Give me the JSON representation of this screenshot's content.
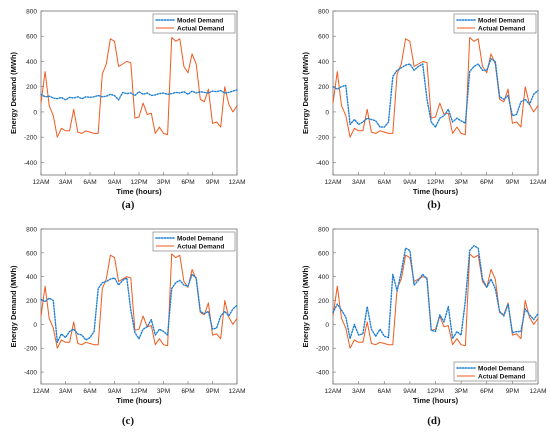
{
  "chart_data": [
    {
      "type": "line",
      "panel_label": "(a)",
      "xlabel": "Time (hours)",
      "ylabel": "Energy Demand (MWh)",
      "xlim": [
        0,
        24
      ],
      "ylim": [
        -500,
        800
      ],
      "x_ticks": [
        {
          "label": "12AM",
          "value": 0
        },
        {
          "label": "3AM",
          "value": 3
        },
        {
          "label": "6AM",
          "value": 6
        },
        {
          "label": "9AM",
          "value": 9
        },
        {
          "label": "12PM",
          "value": 12
        },
        {
          "label": "3PM",
          "value": 15
        },
        {
          "label": "6PM",
          "value": 18
        },
        {
          "label": "9PM",
          "value": 21
        },
        {
          "label": "12AM",
          "value": 24
        }
      ],
      "y_ticks": [
        -400,
        -200,
        0,
        200,
        400,
        600,
        800
      ],
      "legend_position": "top-right",
      "grid": false,
      "x": [
        0.0,
        0.5,
        1.0,
        1.5,
        2.0,
        2.5,
        3.0,
        3.5,
        4.0,
        4.5,
        5.0,
        5.5,
        6.0,
        6.5,
        7.0,
        7.5,
        8.0,
        8.5,
        9.0,
        9.5,
        10.0,
        10.5,
        11.0,
        11.5,
        12.0,
        12.5,
        13.0,
        13.5,
        14.0,
        14.5,
        15.0,
        15.5,
        16.0,
        16.5,
        17.0,
        17.5,
        18.0,
        18.5,
        19.0,
        19.5,
        20.0,
        20.5,
        21.0,
        21.5,
        22.0,
        22.5,
        23.0,
        23.5,
        24.0
      ],
      "series": [
        {
          "name": "Model Demand",
          "color": "#1f7fd0",
          "dash": "dotted",
          "values": [
            140,
            120,
            125,
            110,
            105,
            115,
            95,
            115,
            110,
            120,
            105,
            120,
            115,
            120,
            130,
            120,
            125,
            140,
            130,
            95,
            155,
            145,
            150,
            130,
            160,
            140,
            150,
            130,
            135,
            145,
            150,
            140,
            145,
            155,
            150,
            160,
            140,
            165,
            150,
            160,
            155,
            150,
            165,
            160,
            170,
            150,
            155,
            165,
            175
          ]
        },
        {
          "name": "Actual Demand",
          "color": "#f05a1e",
          "dash": "solid",
          "values": [
            70,
            320,
            50,
            -30,
            -200,
            -130,
            -150,
            -150,
            20,
            -160,
            -170,
            -150,
            -160,
            -170,
            -170,
            300,
            380,
            580,
            560,
            360,
            380,
            400,
            390,
            -50,
            -40,
            70,
            -20,
            -10,
            -170,
            -120,
            -170,
            -180,
            590,
            560,
            580,
            360,
            310,
            460,
            380,
            100,
            80,
            180,
            -90,
            -80,
            -120,
            200,
            60,
            0,
            50
          ]
        }
      ]
    },
    {
      "type": "line",
      "panel_label": "(b)",
      "xlabel": "Time (hours)",
      "ylabel": "Energy Demand (MWh)",
      "xlim": [
        0,
        24
      ],
      "ylim": [
        -500,
        800
      ],
      "x_ticks": [
        {
          "label": "12AM",
          "value": 0
        },
        {
          "label": "3AM",
          "value": 3
        },
        {
          "label": "6AM",
          "value": 6
        },
        {
          "label": "9AM",
          "value": 9
        },
        {
          "label": "12PM",
          "value": 12
        },
        {
          "label": "3PM",
          "value": 15
        },
        {
          "label": "6PM",
          "value": 18
        },
        {
          "label": "9PM",
          "value": 21
        },
        {
          "label": "12AM",
          "value": 24
        }
      ],
      "y_ticks": [
        -400,
        -200,
        0,
        200,
        400,
        600,
        800
      ],
      "legend_position": "top-right",
      "grid": false,
      "x": [
        0.0,
        0.5,
        1.0,
        1.5,
        2.0,
        2.5,
        3.0,
        3.5,
        4.0,
        4.5,
        5.0,
        5.5,
        6.0,
        6.5,
        7.0,
        7.5,
        8.0,
        8.5,
        9.0,
        9.5,
        10.0,
        10.5,
        11.0,
        11.5,
        12.0,
        12.5,
        13.0,
        13.5,
        14.0,
        14.5,
        15.0,
        15.5,
        16.0,
        16.5,
        17.0,
        17.5,
        18.0,
        18.5,
        19.0,
        19.5,
        20.0,
        20.5,
        21.0,
        21.5,
        22.0,
        22.5,
        23.0,
        23.5,
        24.0
      ],
      "series": [
        {
          "name": "Model Demand",
          "color": "#1f7fd0",
          "dash": "dotted",
          "values": [
            200,
            180,
            200,
            210,
            -100,
            -60,
            -100,
            -80,
            -50,
            -60,
            -70,
            -120,
            -120,
            -80,
            280,
            330,
            350,
            370,
            380,
            330,
            360,
            380,
            100,
            -80,
            -120,
            -50,
            -30,
            20,
            -80,
            -50,
            -70,
            -90,
            320,
            360,
            380,
            330,
            330,
            420,
            400,
            120,
            100,
            130,
            -30,
            -20,
            80,
            100,
            60,
            140,
            170
          ]
        },
        {
          "name": "Actual Demand",
          "color": "#f05a1e",
          "dash": "solid",
          "values": [
            70,
            320,
            50,
            -30,
            -200,
            -130,
            -150,
            -150,
            20,
            -160,
            -170,
            -150,
            -160,
            -170,
            -170,
            300,
            380,
            580,
            560,
            360,
            380,
            400,
            390,
            -50,
            -40,
            70,
            -20,
            -10,
            -170,
            -120,
            -170,
            -180,
            590,
            560,
            580,
            360,
            310,
            460,
            380,
            100,
            80,
            180,
            -90,
            -80,
            -120,
            200,
            60,
            0,
            50
          ]
        }
      ]
    },
    {
      "type": "line",
      "panel_label": "(c)",
      "xlabel": "Time (hours)",
      "ylabel": "Energy Demand (MWh)",
      "xlim": [
        0,
        24
      ],
      "ylim": [
        -500,
        800
      ],
      "x_ticks": [
        {
          "label": "12AM",
          "value": 0
        },
        {
          "label": "3AM",
          "value": 3
        },
        {
          "label": "6AM",
          "value": 6
        },
        {
          "label": "9AM",
          "value": 9
        },
        {
          "label": "12PM",
          "value": 12
        },
        {
          "label": "3PM",
          "value": 15
        },
        {
          "label": "6PM",
          "value": 18
        },
        {
          "label": "9PM",
          "value": 21
        },
        {
          "label": "12AM",
          "value": 24
        }
      ],
      "y_ticks": [
        -400,
        -200,
        0,
        200,
        400,
        600,
        800
      ],
      "legend_position": "top-right",
      "grid": false,
      "x": [
        0.0,
        0.5,
        1.0,
        1.5,
        2.0,
        2.5,
        3.0,
        3.5,
        4.0,
        4.5,
        5.0,
        5.5,
        6.0,
        6.5,
        7.0,
        7.5,
        8.0,
        8.5,
        9.0,
        9.5,
        10.0,
        10.5,
        11.0,
        11.5,
        12.0,
        12.5,
        13.0,
        13.5,
        14.0,
        14.5,
        15.0,
        15.5,
        16.0,
        16.5,
        17.0,
        17.5,
        18.0,
        18.5,
        19.0,
        19.5,
        20.0,
        20.5,
        21.0,
        21.5,
        22.0,
        22.5,
        23.0,
        23.5,
        24.0
      ],
      "series": [
        {
          "name": "Model Demand",
          "color": "#1f7fd0",
          "dash": "dotted",
          "values": [
            210,
            190,
            220,
            200,
            -150,
            -80,
            -110,
            -60,
            -40,
            -80,
            -90,
            -130,
            -110,
            -60,
            300,
            350,
            360,
            380,
            390,
            330,
            370,
            390,
            120,
            -70,
            -120,
            -40,
            -20,
            40,
            -90,
            -40,
            -60,
            -90,
            300,
            350,
            370,
            330,
            320,
            420,
            390,
            110,
            90,
            110,
            -40,
            -30,
            70,
            110,
            70,
            130,
            160
          ]
        },
        {
          "name": "Actual Demand",
          "color": "#f05a1e",
          "dash": "solid",
          "values": [
            70,
            320,
            50,
            -30,
            -200,
            -130,
            -150,
            -150,
            20,
            -160,
            -170,
            -150,
            -160,
            -170,
            -170,
            300,
            380,
            580,
            560,
            360,
            380,
            400,
            390,
            -50,
            -40,
            70,
            -20,
            -10,
            -170,
            -120,
            -170,
            -180,
            590,
            560,
            580,
            360,
            310,
            460,
            380,
            100,
            80,
            180,
            -90,
            -80,
            -120,
            200,
            60,
            0,
            50
          ]
        }
      ]
    },
    {
      "type": "line",
      "panel_label": "(d)",
      "xlabel": "Time (hours)",
      "ylabel": "Energy Demand (MWh)",
      "xlim": [
        0,
        24
      ],
      "ylim": [
        -500,
        800
      ],
      "x_ticks": [
        {
          "label": "12AM",
          "value": 0
        },
        {
          "label": "3AM",
          "value": 3
        },
        {
          "label": "6AM",
          "value": 6
        },
        {
          "label": "9AM",
          "value": 9
        },
        {
          "label": "12PM",
          "value": 12
        },
        {
          "label": "3PM",
          "value": 15
        },
        {
          "label": "6PM",
          "value": 18
        },
        {
          "label": "9PM",
          "value": 21
        },
        {
          "label": "12AM",
          "value": 24
        }
      ],
      "y_ticks": [
        -400,
        -200,
        0,
        200,
        400,
        600,
        800
      ],
      "legend_position": "bottom-right",
      "grid": false,
      "x": [
        0.0,
        0.5,
        1.0,
        1.5,
        2.0,
        2.5,
        3.0,
        3.5,
        4.0,
        4.5,
        5.0,
        5.5,
        6.0,
        6.5,
        7.0,
        7.5,
        8.0,
        8.5,
        9.0,
        9.5,
        10.0,
        10.5,
        11.0,
        11.5,
        12.0,
        12.5,
        13.0,
        13.5,
        14.0,
        14.5,
        15.0,
        15.5,
        16.0,
        16.5,
        17.0,
        17.5,
        18.0,
        18.5,
        19.0,
        19.5,
        20.0,
        20.5,
        21.0,
        21.5,
        22.0,
        22.5,
        23.0,
        23.5,
        24.0
      ],
      "series": [
        {
          "name": "Model Demand",
          "color": "#1f7fd0",
          "dash": "dotted",
          "values": [
            100,
            170,
            120,
            60,
            -120,
            0,
            -90,
            -80,
            150,
            -40,
            -100,
            -40,
            -100,
            -110,
            420,
            280,
            440,
            640,
            620,
            330,
            370,
            420,
            380,
            -50,
            -60,
            80,
            20,
            150,
            -120,
            -60,
            -90,
            200,
            620,
            660,
            640,
            380,
            310,
            380,
            300,
            110,
            70,
            170,
            -70,
            -60,
            -60,
            130,
            80,
            40,
            90
          ]
        },
        {
          "name": "Actual Demand",
          "color": "#f05a1e",
          "dash": "solid",
          "values": [
            70,
            320,
            50,
            -30,
            -200,
            -130,
            -150,
            -150,
            20,
            -160,
            -170,
            -150,
            -160,
            -170,
            -170,
            300,
            380,
            580,
            560,
            360,
            380,
            400,
            390,
            -50,
            -40,
            70,
            -20,
            -10,
            -170,
            -120,
            -170,
            -180,
            590,
            560,
            580,
            360,
            310,
            460,
            380,
            100,
            80,
            180,
            -90,
            -80,
            -120,
            200,
            60,
            0,
            50
          ]
        }
      ]
    }
  ]
}
